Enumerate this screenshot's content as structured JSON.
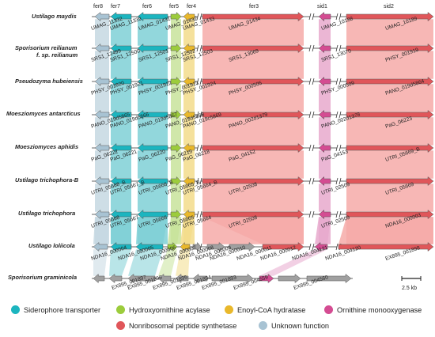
{
  "colors": {
    "siderophore": "#1cb5bf",
    "hydroxy": "#9ccc3c",
    "enoyl": "#e9b82b",
    "ornithine": "#d44c92",
    "nrps": "#e0565a",
    "unknown": "#a8c3d3",
    "other": "#a0a0a0",
    "nrps_band": "#f6aaa8",
    "sid_band": "#e7a9cd",
    "teal_band": "#7fd0d6",
    "green_band": "#c8e39b",
    "yellow_band": "#f3dc8b",
    "blue_band": "#c6d8e2"
  },
  "columns": {
    "fer8": "fer8",
    "fer7": "fer7",
    "fer6": "fer6",
    "fer5": "fer5",
    "fer4": "fer4",
    "fer3": "fer3",
    "sid1": "sid1",
    "sid2": "sid2"
  },
  "species": [
    {
      "name": "Ustilago maydis"
    },
    {
      "name": "Sporisorium reilianum",
      "name2": "f. sp. reilianum"
    },
    {
      "name": "Pseudozyma hubeiensis"
    },
    {
      "name": "Moesziomyces antarcticus"
    },
    {
      "name": "Moesziomyces aphidis"
    },
    {
      "name": "Ustilago trichophora-B"
    },
    {
      "name": "Ustilago trichophora"
    },
    {
      "name": "Ustilago loliicola"
    },
    {
      "name": "Sporisorium graminicola"
    }
  ],
  "gene_labels": [
    {
      "text": "UMAG_11332"
    },
    {
      "text": "UMAG_11339"
    },
    {
      "text": "UMAG_01431"
    },
    {
      "text": "UMAG_01432"
    },
    {
      "text": "UMAG_01433"
    },
    {
      "text": "UMAG_01434"
    },
    {
      "text": "UMAG_10188"
    },
    {
      "text": "UMAG_10189"
    },
    {
      "text": "SRS1_12499"
    },
    {
      "text": "SRS1_12500"
    },
    {
      "text": "SRS1_12501"
    },
    {
      "text": "SRS1_12502"
    },
    {
      "text": "SRS1_12503"
    },
    {
      "text": "SRS1_13069"
    },
    {
      "text": "SRS1_13070"
    },
    {
      "text": "PHSY_001919"
    },
    {
      "text": "PHSY_001920"
    },
    {
      "text": "PHSY_001921"
    },
    {
      "text": "PHSY_001922"
    },
    {
      "text": "PHSY_001923"
    },
    {
      "text": "PHSY_001924"
    },
    {
      "text": "PHSY_000505"
    },
    {
      "text": "PHSY_000509"
    },
    {
      "text": "PANO_019d5864"
    },
    {
      "text": "PANO_019d5865"
    },
    {
      "text": "PANO_019d5866"
    },
    {
      "text": "PANO_019d5867"
    },
    {
      "text": "PANO_019d5868"
    },
    {
      "text": "PANO_019c5869"
    },
    {
      "text": "PANO_002d1379"
    },
    {
      "text": "PANO_002d1378"
    },
    {
      "text": "PaG_06223"
    },
    {
      "text": "PaG_06222"
    },
    {
      "text": "PaG_06221"
    },
    {
      "text": "PaG_06220"
    },
    {
      "text": "PaG_06219"
    },
    {
      "text": "PaG_06218"
    },
    {
      "text": "PaG_04152"
    },
    {
      "text": "PaG_04153"
    },
    {
      "text": "UTRI_05669_B"
    },
    {
      "text": "UTRI_05668_B"
    },
    {
      "text": "UTRI_05667_B"
    },
    {
      "text": "UTRI_05666_B"
    },
    {
      "text": "UTRI_05665_B"
    },
    {
      "text": "UTRI_05664_B"
    },
    {
      "text": "UTRI_02508"
    },
    {
      "text": "UTRI_02509"
    },
    {
      "text": "UTRI_05669"
    },
    {
      "text": "UTRI_05668"
    },
    {
      "text": "UTRI_05667"
    },
    {
      "text": "UTRI_05666"
    },
    {
      "text": "UTRI_05665"
    },
    {
      "text": "UTRI_05664"
    },
    {
      "text": "UTRI_02508"
    },
    {
      "text": "UTRI_02509"
    },
    {
      "text": "NDA16_000003"
    },
    {
      "text": "NDA16_000004"
    },
    {
      "text": "NDA16_000005"
    },
    {
      "text": "NDA16_000006"
    },
    {
      "text": "NDA16_000007"
    },
    {
      "text": "NDA16_000008"
    },
    {
      "text": "NDA16_000009"
    },
    {
      "text": "NDA16_000010"
    },
    {
      "text": "NDA16_000011"
    },
    {
      "text": "NDA16_000012"
    },
    {
      "text": "NDA16_004121"
    },
    {
      "text": "NDA16_004120"
    },
    {
      "text": "EX895_001898"
    },
    {
      "text": "EX895_001897"
    },
    {
      "text": "EX895_001896"
    },
    {
      "text": "EX895_001895"
    },
    {
      "text": "EX895_001894"
    },
    {
      "text": "EX895_001893"
    },
    {
      "text": "EX895_004559"
    },
    {
      "text": "EX895_004560"
    }
  ],
  "scale_bar": {
    "label": "2.5 kb"
  },
  "legend": [
    {
      "label": "Siderophore transporter",
      "color": "#1cb5bf"
    },
    {
      "label": "Hydroxyornithine acylase",
      "color": "#9ccc3c"
    },
    {
      "label": "Enoyl-CoA hydratase",
      "color": "#e9b82b"
    },
    {
      "label": "Ornithine monooxygenase",
      "color": "#d44c92"
    },
    {
      "label": "Nonribosomal peptide synthetase",
      "color": "#e0565a"
    },
    {
      "label": "Unknown function",
      "color": "#a8c3d3"
    }
  ]
}
